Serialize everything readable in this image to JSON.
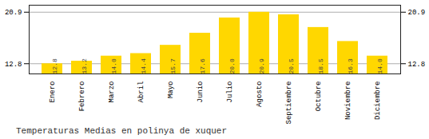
{
  "chart_data": {
    "type": "bar",
    "title": "Temperaturas Medias en polinya de xuquer",
    "categories": [
      "Enero",
      "Febrero",
      "Marzo",
      "Abril",
      "Mayo",
      "Junio",
      "Julio",
      "Agosto",
      "Septiembre",
      "Octubre",
      "Noviembre",
      "Diciembre"
    ],
    "values": [
      12.8,
      13.2,
      14.0,
      14.4,
      15.7,
      17.6,
      20.0,
      20.9,
      20.5,
      18.5,
      16.3,
      14.0
    ],
    "value_labels": [
      "12.8",
      "13.2",
      "14.0",
      "14.4",
      "15.7",
      "17.6",
      "20.0",
      "20.9",
      "20.5",
      "18.5",
      "16.3",
      "14.0"
    ],
    "color": "#FFD700",
    "ylim": [
      11.2,
      22.0
    ],
    "yticks": [
      12.8,
      20.9
    ],
    "grid": true,
    "data_labels": true
  }
}
